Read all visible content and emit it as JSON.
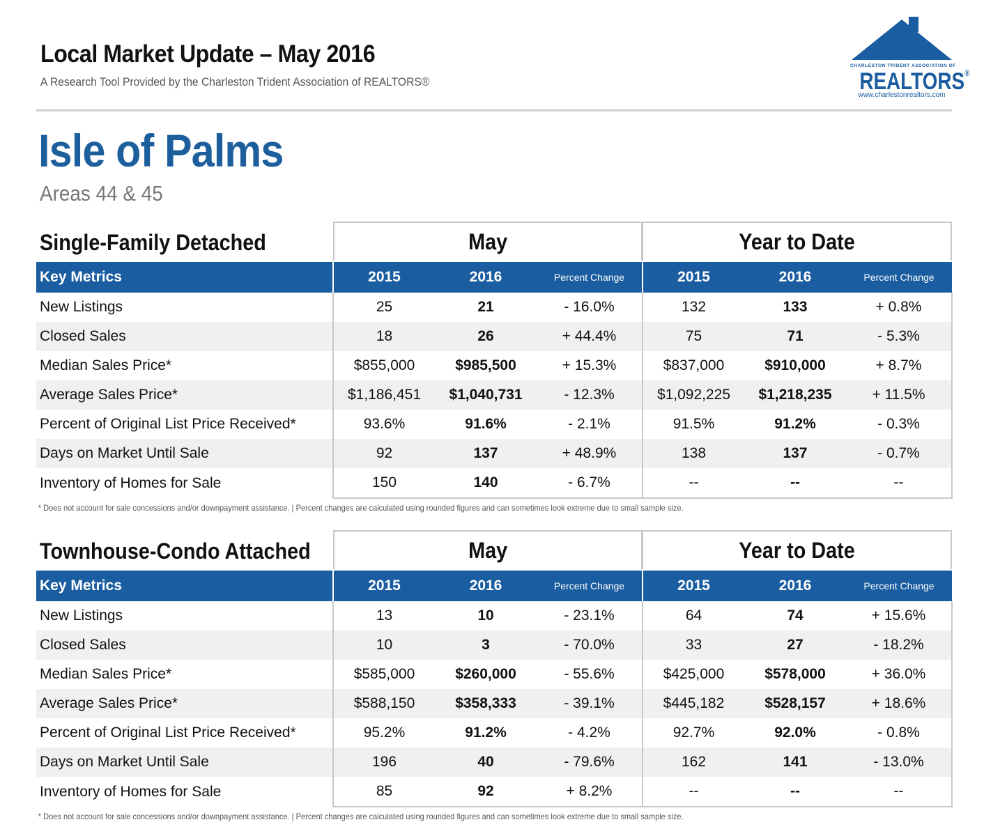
{
  "header": {
    "title": "Local Market Update – May 2016",
    "subtitle": "A Research Tool Provided by the Charleston Trident Association of REALTORS®"
  },
  "logo": {
    "small_text": "CHARLESTON TRIDENT ASSOCIATION OF",
    "word": "REALTORS",
    "registered": "®",
    "url": "www.charlestonrealtors.com",
    "color": "#1a5da0"
  },
  "area": {
    "title": "Isle of Palms",
    "subtitle": "Areas 44 & 45",
    "title_color": "#1d5e9c"
  },
  "columns": {
    "key_metrics": "Key Metrics",
    "y1": "2015",
    "y2": "2016",
    "pct": "Percent Change",
    "may": "May",
    "ytd": "Year to Date"
  },
  "footnote": "* Does not account for sale concessions and/or downpayment assistance.  |  Percent changes are calculated using rounded figures and can sometimes look extreme due to small sample size.",
  "sections": [
    {
      "name": "Single-Family Detached",
      "rows": [
        {
          "metric": "New Listings",
          "m15": "25",
          "m16": "21",
          "mpc": "- 16.0%",
          "y15": "132",
          "y16": "133",
          "ypc": "+ 0.8%"
        },
        {
          "metric": "Closed Sales",
          "m15": "18",
          "m16": "26",
          "mpc": "+ 44.4%",
          "y15": "75",
          "y16": "71",
          "ypc": "- 5.3%"
        },
        {
          "metric": "Median Sales Price*",
          "m15": "$855,000",
          "m16": "$985,500",
          "mpc": "+ 15.3%",
          "y15": "$837,000",
          "y16": "$910,000",
          "ypc": "+ 8.7%"
        },
        {
          "metric": "Average Sales Price*",
          "m15": "$1,186,451",
          "m16": "$1,040,731",
          "mpc": "- 12.3%",
          "y15": "$1,092,225",
          "y16": "$1,218,235",
          "ypc": "+ 11.5%"
        },
        {
          "metric": "Percent of Original List Price Received*",
          "m15": "93.6%",
          "m16": "91.6%",
          "mpc": "- 2.1%",
          "y15": "91.5%",
          "y16": "91.2%",
          "ypc": "- 0.3%"
        },
        {
          "metric": "Days on Market Until Sale",
          "m15": "92",
          "m16": "137",
          "mpc": "+ 48.9%",
          "y15": "138",
          "y16": "137",
          "ypc": "- 0.7%"
        },
        {
          "metric": "Inventory of Homes for Sale",
          "m15": "150",
          "m16": "140",
          "mpc": "- 6.7%",
          "y15": "--",
          "y16": "--",
          "ypc": "--"
        }
      ]
    },
    {
      "name": "Townhouse-Condo Attached",
      "rows": [
        {
          "metric": "New Listings",
          "m15": "13",
          "m16": "10",
          "mpc": "- 23.1%",
          "y15": "64",
          "y16": "74",
          "ypc": "+ 15.6%"
        },
        {
          "metric": "Closed Sales",
          "m15": "10",
          "m16": "3",
          "mpc": "- 70.0%",
          "y15": "33",
          "y16": "27",
          "ypc": "- 18.2%"
        },
        {
          "metric": "Median Sales Price*",
          "m15": "$585,000",
          "m16": "$260,000",
          "mpc": "- 55.6%",
          "y15": "$425,000",
          "y16": "$578,000",
          "ypc": "+ 36.0%"
        },
        {
          "metric": "Average Sales Price*",
          "m15": "$588,150",
          "m16": "$358,333",
          "mpc": "- 39.1%",
          "y15": "$445,182",
          "y16": "$528,157",
          "ypc": "+ 18.6%"
        },
        {
          "metric": "Percent of Original List Price Received*",
          "m15": "95.2%",
          "m16": "91.2%",
          "mpc": "- 4.2%",
          "y15": "92.7%",
          "y16": "92.0%",
          "ypc": "- 0.8%"
        },
        {
          "metric": "Days on Market Until Sale",
          "m15": "196",
          "m16": "40",
          "mpc": "- 79.6%",
          "y15": "162",
          "y16": "141",
          "ypc": "- 13.0%"
        },
        {
          "metric": "Inventory of Homes for Sale",
          "m15": "85",
          "m16": "92",
          "mpc": "+ 8.2%",
          "y15": "--",
          "y16": "--",
          "ypc": "--"
        }
      ]
    }
  ]
}
